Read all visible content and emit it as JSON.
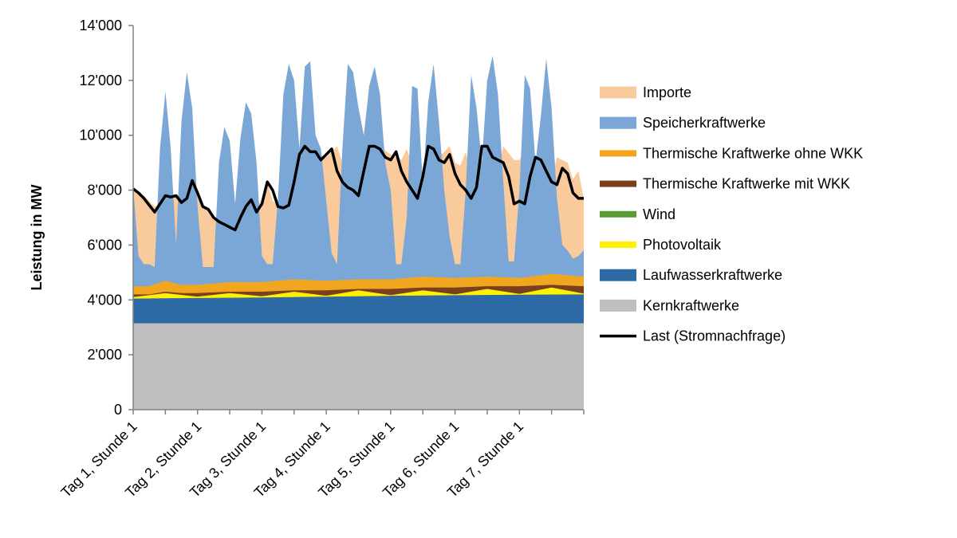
{
  "chart_data": {
    "type": "area",
    "ylabel": "Leistung in MW",
    "ylim": [
      0,
      14000
    ],
    "yticks": [
      {
        "value": 0,
        "label": "0"
      },
      {
        "value": 2000,
        "label": "2'000"
      },
      {
        "value": 4000,
        "label": "4'000"
      },
      {
        "value": 6000,
        "label": "6'000"
      },
      {
        "value": 8000,
        "label": "8'000"
      },
      {
        "value": 10000,
        "label": "10'000"
      },
      {
        "value": 12000,
        "label": "12'000"
      },
      {
        "value": 14000,
        "label": "14'000"
      }
    ],
    "xlim": [
      0,
      168
    ],
    "x_unit": "hour",
    "xtick_hours": [
      0,
      24,
      48,
      72,
      96,
      120,
      144
    ],
    "xtick_labels": [
      "Tag 1, Stunde 1",
      "Tag 2, Stunde 1",
      "Tag 3, Stunde 1",
      "Tag 4, Stunde 1",
      "Tag 5, Stunde 1",
      "Tag 6, Stunde 1",
      "Tag 7, Stunde 1"
    ],
    "grid": false,
    "legend_position": "right",
    "stack_order": [
      "Kernkraftwerke",
      "Laufwasserkraftwerke",
      "Photovoltaik",
      "Wind",
      "Thermische Kraftwerke mit WKK",
      "Thermische Kraftwerke ohne WKK",
      "Speicherkraftwerke",
      "Importe"
    ],
    "series": [
      {
        "name": "Importe",
        "color": "#F9CB9C",
        "kind": "area",
        "top_points": [
          [
            0,
            8000
          ],
          [
            4,
            7800
          ],
          [
            8,
            7400
          ],
          [
            12,
            7600
          ],
          [
            16,
            7800
          ],
          [
            20,
            7400
          ],
          [
            22,
            8000
          ],
          [
            24,
            7800
          ],
          [
            28,
            7200
          ],
          [
            32,
            6900
          ],
          [
            36,
            6700
          ],
          [
            38,
            6500
          ],
          [
            42,
            7200
          ],
          [
            46,
            7700
          ],
          [
            48,
            7400
          ],
          [
            50,
            8300
          ],
          [
            52,
            7600
          ],
          [
            56,
            7400
          ],
          [
            58,
            7300
          ],
          [
            62,
            8400
          ],
          [
            64,
            9300
          ],
          [
            66,
            9600
          ],
          [
            68,
            9400
          ],
          [
            72,
            9200
          ],
          [
            76,
            9600
          ],
          [
            78,
            9000
          ],
          [
            80,
            8200
          ],
          [
            84,
            8000
          ],
          [
            86,
            7800
          ],
          [
            88,
            8600
          ],
          [
            92,
            9600
          ],
          [
            96,
            9300
          ],
          [
            98,
            9200
          ],
          [
            100,
            9100
          ],
          [
            102,
            9500
          ],
          [
            106,
            8400
          ],
          [
            108,
            8000
          ],
          [
            110,
            7700
          ],
          [
            114,
            9200
          ],
          [
            118,
            9600
          ],
          [
            120,
            9000
          ],
          [
            122,
            8900
          ],
          [
            124,
            9400
          ],
          [
            128,
            7700
          ],
          [
            130,
            8100
          ],
          [
            132,
            7700
          ],
          [
            134,
            7900
          ],
          [
            138,
            9600
          ],
          [
            142,
            9100
          ],
          [
            144,
            9100
          ],
          [
            146,
            9500
          ],
          [
            150,
            7600
          ],
          [
            152,
            7700
          ],
          [
            154,
            7500
          ],
          [
            158,
            9200
          ],
          [
            162,
            9000
          ],
          [
            164,
            8400
          ],
          [
            166,
            8700
          ],
          [
            168,
            7700
          ]
        ]
      },
      {
        "name": "Speicherkraftwerke",
        "color": "#7BA7D7",
        "kind": "area",
        "top_points": [
          [
            0,
            8100
          ],
          [
            2,
            5600
          ],
          [
            4,
            5300
          ],
          [
            6,
            5300
          ],
          [
            8,
            5200
          ],
          [
            10,
            9500
          ],
          [
            12,
            11600
          ],
          [
            14,
            9500
          ],
          [
            16,
            6000
          ],
          [
            18,
            10500
          ],
          [
            20,
            12300
          ],
          [
            22,
            11000
          ],
          [
            24,
            7400
          ],
          [
            26,
            5200
          ],
          [
            28,
            5200
          ],
          [
            30,
            5200
          ],
          [
            32,
            9000
          ],
          [
            34,
            10300
          ],
          [
            36,
            9800
          ],
          [
            38,
            7500
          ],
          [
            40,
            9900
          ],
          [
            42,
            11200
          ],
          [
            44,
            10800
          ],
          [
            46,
            9000
          ],
          [
            48,
            5600
          ],
          [
            50,
            5300
          ],
          [
            52,
            5300
          ],
          [
            54,
            7700
          ],
          [
            56,
            11500
          ],
          [
            58,
            12600
          ],
          [
            60,
            12000
          ],
          [
            62,
            9500
          ],
          [
            64,
            12500
          ],
          [
            66,
            12700
          ],
          [
            68,
            10000
          ],
          [
            70,
            9500
          ],
          [
            72,
            7600
          ],
          [
            74,
            5700
          ],
          [
            76,
            5300
          ],
          [
            78,
            9500
          ],
          [
            80,
            12600
          ],
          [
            82,
            12300
          ],
          [
            84,
            11000
          ],
          [
            86,
            10000
          ],
          [
            88,
            11800
          ],
          [
            90,
            12500
          ],
          [
            92,
            11500
          ],
          [
            94,
            9000
          ],
          [
            96,
            8000
          ],
          [
            98,
            5300
          ],
          [
            100,
            5300
          ],
          [
            102,
            7000
          ],
          [
            104,
            11800
          ],
          [
            106,
            11700
          ],
          [
            108,
            8200
          ],
          [
            110,
            11200
          ],
          [
            112,
            12600
          ],
          [
            114,
            10500
          ],
          [
            116,
            8000
          ],
          [
            118,
            6300
          ],
          [
            120,
            5300
          ],
          [
            122,
            5300
          ],
          [
            124,
            8000
          ],
          [
            126,
            12200
          ],
          [
            128,
            11000
          ],
          [
            130,
            9000
          ],
          [
            132,
            12000
          ],
          [
            134,
            12900
          ],
          [
            136,
            11500
          ],
          [
            138,
            8300
          ],
          [
            140,
            5400
          ],
          [
            142,
            5400
          ],
          [
            144,
            8000
          ],
          [
            146,
            12200
          ],
          [
            148,
            11700
          ],
          [
            150,
            9000
          ],
          [
            152,
            10700
          ],
          [
            154,
            12800
          ],
          [
            156,
            11000
          ],
          [
            158,
            7700
          ],
          [
            160,
            6000
          ],
          [
            162,
            5800
          ],
          [
            164,
            5500
          ],
          [
            166,
            5600
          ],
          [
            168,
            5800
          ]
        ]
      },
      {
        "name": "Thermische Kraftwerke ohne WKK",
        "color": "#F0A71F",
        "kind": "area",
        "top_points": [
          [
            0,
            4500
          ],
          [
            6,
            4500
          ],
          [
            12,
            4700
          ],
          [
            18,
            4550
          ],
          [
            24,
            4550
          ],
          [
            36,
            4650
          ],
          [
            48,
            4650
          ],
          [
            60,
            4750
          ],
          [
            72,
            4700
          ],
          [
            84,
            4750
          ],
          [
            96,
            4750
          ],
          [
            108,
            4850
          ],
          [
            120,
            4800
          ],
          [
            132,
            4850
          ],
          [
            144,
            4800
          ],
          [
            156,
            4950
          ],
          [
            168,
            4850
          ]
        ]
      },
      {
        "name": "Thermische Kraftwerke mit WKK",
        "color": "#7B3F1E",
        "kind": "area",
        "top_points": [
          [
            0,
            4200
          ],
          [
            6,
            4200
          ],
          [
            12,
            4300
          ],
          [
            18,
            4250
          ],
          [
            24,
            4250
          ],
          [
            36,
            4300
          ],
          [
            48,
            4300
          ],
          [
            60,
            4350
          ],
          [
            72,
            4350
          ],
          [
            84,
            4400
          ],
          [
            96,
            4400
          ],
          [
            108,
            4450
          ],
          [
            120,
            4450
          ],
          [
            132,
            4500
          ],
          [
            144,
            4500
          ],
          [
            156,
            4550
          ],
          [
            168,
            4500
          ]
        ]
      },
      {
        "name": "Wind",
        "color": "#5C9C34",
        "kind": "area",
        "top_points": [
          [
            0,
            4120
          ],
          [
            24,
            4130
          ],
          [
            48,
            4140
          ],
          [
            72,
            4160
          ],
          [
            96,
            4180
          ],
          [
            120,
            4200
          ],
          [
            144,
            4220
          ],
          [
            168,
            4230
          ]
        ]
      },
      {
        "name": "Photovoltaik",
        "color": "#FFF200",
        "kind": "area",
        "top_points": [
          [
            0,
            4100
          ],
          [
            12,
            4250
          ],
          [
            24,
            4120
          ],
          [
            36,
            4250
          ],
          [
            48,
            4130
          ],
          [
            60,
            4300
          ],
          [
            72,
            4150
          ],
          [
            84,
            4350
          ],
          [
            96,
            4170
          ],
          [
            108,
            4350
          ],
          [
            120,
            4200
          ],
          [
            132,
            4400
          ],
          [
            144,
            4220
          ],
          [
            156,
            4450
          ],
          [
            168,
            4230
          ]
        ]
      },
      {
        "name": "Laufwasserkraftwerke",
        "color": "#2E6AA5",
        "kind": "area",
        "top_points": [
          [
            0,
            4050
          ],
          [
            24,
            4070
          ],
          [
            48,
            4090
          ],
          [
            72,
            4120
          ],
          [
            96,
            4150
          ],
          [
            120,
            4170
          ],
          [
            144,
            4190
          ],
          [
            168,
            4200
          ]
        ]
      },
      {
        "name": "Kernkraftwerke",
        "color": "#BFBFBF",
        "kind": "area",
        "top_points": [
          [
            0,
            3150
          ],
          [
            168,
            3150
          ]
        ]
      },
      {
        "name": "Last (Stromnachfrage)",
        "color": "#000000",
        "kind": "line",
        "points": [
          [
            0,
            8050
          ],
          [
            2,
            7900
          ],
          [
            4,
            7700
          ],
          [
            6,
            7450
          ],
          [
            8,
            7200
          ],
          [
            10,
            7500
          ],
          [
            12,
            7800
          ],
          [
            14,
            7750
          ],
          [
            16,
            7800
          ],
          [
            18,
            7550
          ],
          [
            20,
            7700
          ],
          [
            22,
            8350
          ],
          [
            24,
            7900
          ],
          [
            26,
            7400
          ],
          [
            28,
            7300
          ],
          [
            30,
            7000
          ],
          [
            32,
            6850
          ],
          [
            34,
            6750
          ],
          [
            36,
            6650
          ],
          [
            38,
            6550
          ],
          [
            40,
            7000
          ],
          [
            42,
            7400
          ],
          [
            44,
            7650
          ],
          [
            46,
            7200
          ],
          [
            48,
            7500
          ],
          [
            50,
            8300
          ],
          [
            52,
            8000
          ],
          [
            54,
            7400
          ],
          [
            56,
            7350
          ],
          [
            58,
            7450
          ],
          [
            60,
            8300
          ],
          [
            62,
            9300
          ],
          [
            64,
            9600
          ],
          [
            66,
            9400
          ],
          [
            68,
            9400
          ],
          [
            70,
            9100
          ],
          [
            72,
            9300
          ],
          [
            74,
            9500
          ],
          [
            76,
            8700
          ],
          [
            78,
            8300
          ],
          [
            80,
            8100
          ],
          [
            82,
            8000
          ],
          [
            84,
            7800
          ],
          [
            86,
            8700
          ],
          [
            88,
            9600
          ],
          [
            90,
            9600
          ],
          [
            92,
            9500
          ],
          [
            94,
            9200
          ],
          [
            96,
            9100
          ],
          [
            98,
            9400
          ],
          [
            100,
            8700
          ],
          [
            102,
            8300
          ],
          [
            104,
            8000
          ],
          [
            106,
            7700
          ],
          [
            108,
            8500
          ],
          [
            110,
            9600
          ],
          [
            112,
            9500
          ],
          [
            114,
            9100
          ],
          [
            116,
            9000
          ],
          [
            118,
            9300
          ],
          [
            120,
            8600
          ],
          [
            122,
            8200
          ],
          [
            124,
            8000
          ],
          [
            126,
            7700
          ],
          [
            128,
            8100
          ],
          [
            130,
            9600
          ],
          [
            132,
            9600
          ],
          [
            134,
            9200
          ],
          [
            136,
            9100
          ],
          [
            138,
            9000
          ],
          [
            140,
            8500
          ],
          [
            142,
            7500
          ],
          [
            144,
            7600
          ],
          [
            146,
            7500
          ],
          [
            148,
            8500
          ],
          [
            150,
            9200
          ],
          [
            152,
            9100
          ],
          [
            154,
            8700
          ],
          [
            156,
            8300
          ],
          [
            158,
            8200
          ],
          [
            160,
            8800
          ],
          [
            162,
            8600
          ],
          [
            164,
            7900
          ],
          [
            166,
            7700
          ],
          [
            168,
            7700
          ]
        ]
      }
    ]
  }
}
